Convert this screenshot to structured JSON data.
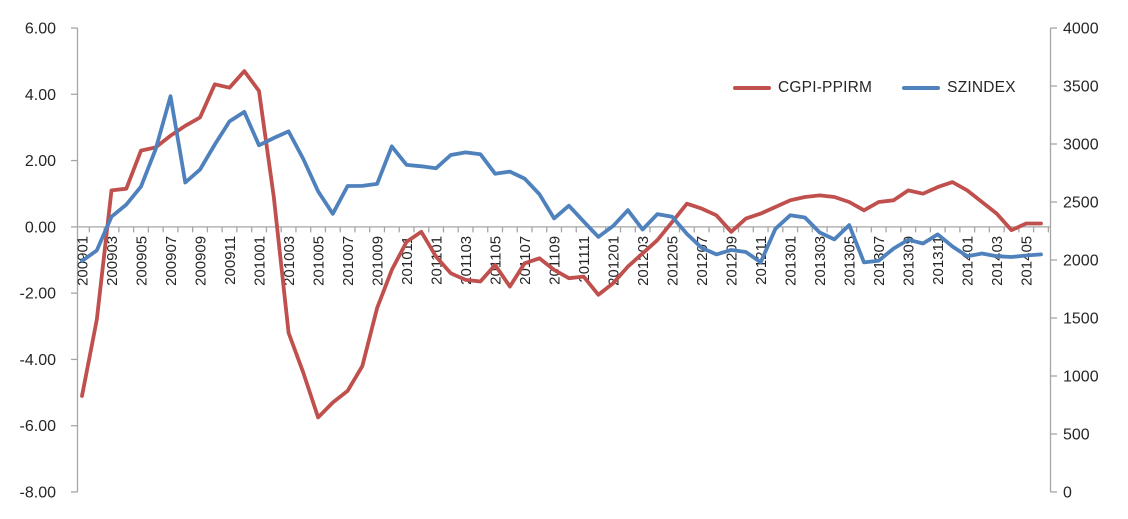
{
  "colors": {
    "series_red": "#C0504D",
    "series_blue": "#4F81BD",
    "axis": "#A6A6A6",
    "text": "#262626",
    "background": "#FFFFFF"
  },
  "legend": {
    "items": [
      {
        "label": "CGPI-PPIRM",
        "color": "#C0504D"
      },
      {
        "label": "SZINDEX",
        "color": "#4F81BD"
      }
    ]
  },
  "chart_data": {
    "type": "line",
    "title": "",
    "xlabel": "",
    "ylabel_left": "",
    "ylabel_right": "",
    "grid": "zero-line-only",
    "legend_position": "top-right-inside",
    "x": [
      "200901",
      "200902",
      "200903",
      "200904",
      "200905",
      "200906",
      "200907",
      "200908",
      "200909",
      "200910",
      "200911",
      "200912",
      "201001",
      "201002",
      "201003",
      "201004",
      "201005",
      "201006",
      "201007",
      "201008",
      "201009",
      "201010",
      "201011",
      "201012",
      "201101",
      "201102",
      "201103",
      "201104",
      "201105",
      "201106",
      "201107",
      "201108",
      "201109",
      "201110",
      "201111",
      "201112",
      "201201",
      "201202",
      "201203",
      "201204",
      "201205",
      "201206",
      "201207",
      "201208",
      "201209",
      "201210",
      "201211",
      "201212",
      "201301",
      "201302",
      "201303",
      "201304",
      "201305",
      "201306",
      "201307",
      "201308",
      "201309",
      "201310",
      "201311",
      "201312",
      "201401",
      "201402",
      "201403",
      "201404",
      "201405",
      "201406"
    ],
    "x_labels_shown": [
      "200901",
      "200903",
      "200905",
      "200907",
      "200909",
      "200911",
      "201001",
      "201003",
      "201005",
      "201007",
      "201009",
      "201011",
      "201101",
      "201103",
      "201105",
      "201107",
      "201109",
      "201111",
      "201201",
      "201203",
      "201205",
      "201207",
      "201209",
      "201211",
      "201301",
      "201303",
      "201305",
      "201307",
      "201309",
      "201311",
      "201401",
      "201403",
      "201405"
    ],
    "left_axis": {
      "min": -8,
      "max": 6,
      "step": 2,
      "ticks": [
        "6.00",
        "4.00",
        "2.00",
        "0.00",
        "-2.00",
        "-4.00",
        "-6.00",
        "-8.00"
      ]
    },
    "right_axis": {
      "min": 0,
      "max": 4000,
      "step": 500,
      "ticks": [
        "4000",
        "3500",
        "3000",
        "2500",
        "2000",
        "1500",
        "1000",
        "500",
        "0"
      ]
    },
    "series": [
      {
        "name": "CGPI-PPIRM",
        "axis": "left",
        "color": "#C0504D",
        "values": [
          -5.1,
          -2.8,
          1.1,
          1.15,
          2.3,
          2.4,
          2.75,
          3.05,
          3.3,
          4.3,
          4.2,
          4.7,
          4.1,
          0.9,
          -3.2,
          -4.4,
          -5.75,
          -5.3,
          -4.95,
          -4.2,
          -2.45,
          -1.3,
          -0.45,
          -0.15,
          -0.9,
          -1.4,
          -1.6,
          -1.65,
          -1.15,
          -1.8,
          -1.1,
          -0.95,
          -1.3,
          -1.55,
          -1.5,
          -2.05,
          -1.7,
          -1.2,
          -0.8,
          -0.4,
          0.15,
          0.7,
          0.55,
          0.35,
          -0.15,
          0.25,
          0.4,
          0.6,
          0.8,
          0.9,
          0.95,
          0.9,
          0.75,
          0.5,
          0.75,
          0.8,
          1.1,
          1.0,
          1.2,
          1.35,
          1.1,
          0.75,
          0.4,
          -0.1,
          0.1,
          0.1
        ]
      },
      {
        "name": "SZINDEX",
        "axis": "right",
        "color": "#4F81BD",
        "values": [
          1991,
          2083,
          2373,
          2478,
          2633,
          2959,
          3412,
          2668,
          2779,
          2996,
          3195,
          3277,
          2989,
          3052,
          3109,
          2871,
          2592,
          2398,
          2638,
          2639,
          2656,
          2979,
          2820,
          2808,
          2791,
          2905,
          2928,
          2912,
          2744,
          2762,
          2702,
          2567,
          2359,
          2468,
          2333,
          2199,
          2293,
          2429,
          2263,
          2396,
          2372,
          2225,
          2104,
          2048,
          2086,
          2069,
          1980,
          2269,
          2385,
          2366,
          2237,
          2178,
          2301,
          1979,
          1994,
          2098,
          2175,
          2142,
          2221,
          2116,
          2033,
          2056,
          2033,
          2026,
          2039,
          2048
        ]
      }
    ]
  }
}
